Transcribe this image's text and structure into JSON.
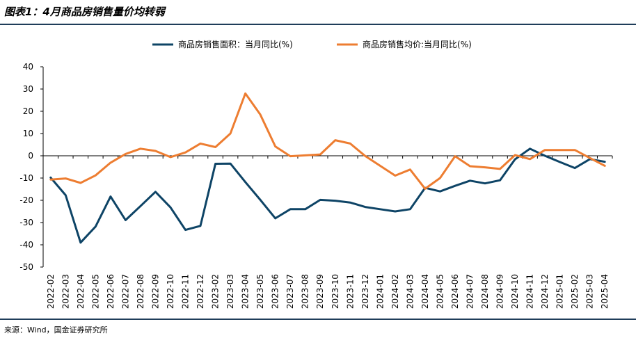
{
  "title": "图表1：4月商品房销售量价均转弱",
  "source": "来源：Wind，国金证券研究所",
  "colors": {
    "area": "#0e4466",
    "price": "#ed7d31",
    "rule": "#1f3d5a"
  },
  "chart_data": {
    "type": "line",
    "categories": [
      "2022-02",
      "2022-03",
      "2022-04",
      "2022-05",
      "2022-06",
      "2022-07",
      "2022-08",
      "2022-09",
      "2022-10",
      "2022-11",
      "2022-12",
      "2023-02",
      "2023-03",
      "2023-04",
      "2023-05",
      "2023-06",
      "2023-07",
      "2023-08",
      "2023-09",
      "2023-10",
      "2023-11",
      "2023-12",
      "2024-01",
      "2024-02",
      "2024-03",
      "2024-04",
      "2024-05",
      "2024-06",
      "2024-07",
      "2024-08",
      "2024-09",
      "2024-10",
      "2024-11",
      "2024-12",
      "2025-01",
      "2025-02",
      "2025-03",
      "2025-04"
    ],
    "series": [
      {
        "name": "商品房销售面积：当月同比(%)",
        "color": "#0e4466",
        "values": [
          -9.8,
          -17.7,
          -39,
          -31.8,
          -18.3,
          -28.9,
          -22.6,
          -16.2,
          -23.2,
          -33.3,
          -31.5,
          -3.6,
          -3.5,
          -11.8,
          -19.8,
          -28.1,
          -24,
          -24,
          -19.8,
          -20.2,
          -21,
          -23,
          -24,
          -25,
          -24,
          -14.4,
          -16,
          -13.5,
          -11.2,
          -12.4,
          -11,
          -1.6,
          3.2,
          0,
          -2.8,
          -5.5,
          -1.5,
          -2.7
        ]
      },
      {
        "name": "商品房销售均价:当月同比(%)",
        "color": "#ed7d31",
        "values": [
          -10.7,
          -10.2,
          -12.2,
          -8.8,
          -3.1,
          0.8,
          3.2,
          2.2,
          -0.6,
          1.5,
          5.5,
          3.9,
          10,
          28,
          18.5,
          4.2,
          -0.2,
          0.2,
          0.6,
          7,
          5.5,
          -0.1,
          -4.5,
          -8.9,
          -6.2,
          -14.8,
          -10,
          -0.2,
          -4.7,
          -5.2,
          -5.9,
          0.3,
          -1.5,
          2.6,
          2.6,
          2.6,
          -1,
          -4.5
        ]
      }
    ],
    "ylim": [
      -50,
      40
    ],
    "yticks": [
      -50,
      -40,
      -30,
      -20,
      -10,
      0,
      10,
      20,
      30,
      40
    ],
    "legend": "top-center",
    "grid": false
  }
}
